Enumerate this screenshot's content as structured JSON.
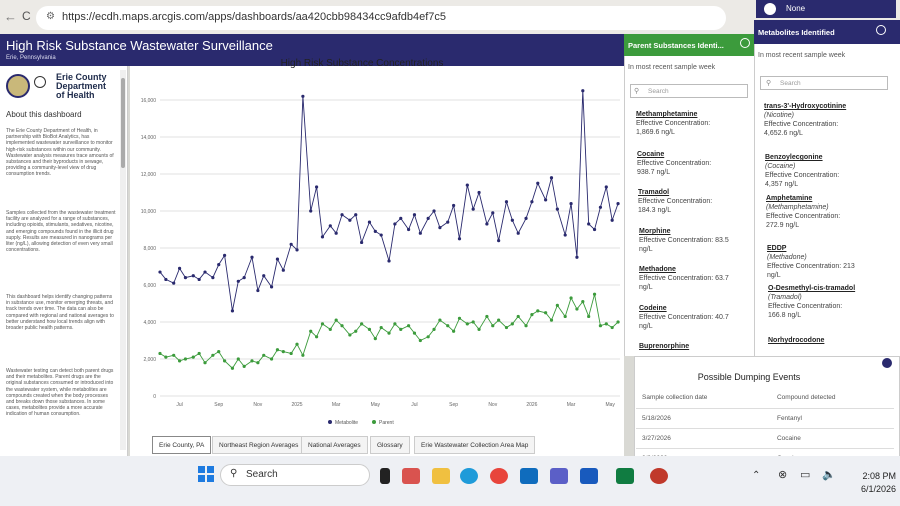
{
  "browser": {
    "back": "←",
    "reload": "C",
    "url": "https://ecdh.maps.arcgis.com/apps/dashboards/aa420cbb98434cc9afdb4ef7c5"
  },
  "header": {
    "title": "High Risk Substance Wastewater Surveillance",
    "subtitle": "Erie, Pennsylvania"
  },
  "notice": {
    "label": "None"
  },
  "left": {
    "logo_text": [
      "Erie County",
      "Department",
      "of Health"
    ],
    "about_heading": "About this dashboard",
    "paragraphs": [
      "The Erie County Department of Health, in partnership with BioBot Analytics, has implemented wastewater surveillance to monitor high-risk substances within our community. Wastewater analysis measures trace amounts of substances and their byproducts in sewage, providing a community-level view of drug consumption trends.",
      "Samples collected from the wastewater treatment facility are analyzed for a range of substances, including opioids, stimulants, sedatives, nicotine, and emerging compounds found in the illicit drug supply. Results are measured in nanograms per liter (ng/L), allowing detection of even very small concentrations.",
      "This dashboard helps identify changing patterns in substance use, monitor emerging threats, and track trends over time. The data can also be compared with regional and national averages to better understand how local trends align with broader public health patterns.",
      "Wastewater testing can detect both parent drugs and their metabolites. Parent drugs are the original substances consumed or introduced into the wastewater system, while metabolites are compounds created when the body processes and breaks down those substances. In some cases, metabolites provide a more accurate indication of human consumption."
    ]
  },
  "chart_data": {
    "type": "line",
    "title": "High Risk Substance Concentrations",
    "ylim": [
      0,
      16000
    ],
    "yticks": [
      "0",
      "2,000",
      "4,000",
      "6,000",
      "8,000",
      "10,000",
      "12,000",
      "14,000",
      "16,000"
    ],
    "xticks": [
      "Jul",
      "Sep",
      "Nov",
      "2025",
      "Mar",
      "May",
      "Jul",
      "Sep",
      "Nov",
      "2026",
      "Mar",
      "May"
    ],
    "xrange": [
      0,
      23.5
    ],
    "legend": "bottom",
    "series": [
      {
        "name": "Metabolite",
        "color": "#2a2a6e",
        "x": [
          0,
          0.3,
          0.7,
          1,
          1.3,
          1.7,
          2,
          2.3,
          2.7,
          3,
          3.3,
          3.7,
          4,
          4.3,
          4.7,
          5,
          5.3,
          5.7,
          6,
          6.3,
          6.7,
          7,
          7.3,
          7.7,
          8,
          8.3,
          8.7,
          9,
          9.3,
          9.7,
          10,
          10.3,
          10.7,
          11,
          11.3,
          11.7,
          12,
          12.3,
          12.7,
          13,
          13.3,
          13.7,
          14,
          14.3,
          14.7,
          15,
          15.3,
          15.7,
          16,
          16.3,
          16.7,
          17,
          17.3,
          17.7,
          18,
          18.3,
          18.7,
          19,
          19.3,
          19.7,
          20,
          20.3,
          20.7,
          21,
          21.3,
          21.6,
          21.9,
          22.2,
          22.5,
          22.8,
          23.1,
          23.4
        ],
        "values": [
          6700,
          6300,
          6100,
          6900,
          6400,
          6500,
          6300,
          6700,
          6400,
          7100,
          7600,
          4600,
          6200,
          6400,
          7500,
          5700,
          6500,
          5900,
          7400,
          6800,
          8200,
          7900,
          16200,
          10000,
          11300,
          8600,
          9200,
          8800,
          9800,
          9500,
          9800,
          8300,
          9400,
          8900,
          8700,
          7300,
          9300,
          9600,
          9000,
          9800,
          8800,
          9600,
          10000,
          9100,
          9400,
          10300,
          8500,
          11400,
          10100,
          11000,
          9300,
          9900,
          8400,
          10500,
          9500,
          8800,
          9600,
          10500,
          11500,
          10600,
          11800,
          10100,
          8700,
          10400,
          7500,
          16500,
          9300,
          9000,
          10200,
          11300,
          9500,
          10400
        ]
      },
      {
        "name": "Parent",
        "color": "#3c9b3c",
        "x": [
          0,
          0.3,
          0.7,
          1,
          1.3,
          1.7,
          2,
          2.3,
          2.7,
          3,
          3.3,
          3.7,
          4,
          4.3,
          4.7,
          5,
          5.3,
          5.7,
          6,
          6.3,
          6.7,
          7,
          7.3,
          7.7,
          8,
          8.3,
          8.7,
          9,
          9.3,
          9.7,
          10,
          10.3,
          10.7,
          11,
          11.3,
          11.7,
          12,
          12.3,
          12.7,
          13,
          13.3,
          13.7,
          14,
          14.3,
          14.7,
          15,
          15.3,
          15.7,
          16,
          16.3,
          16.7,
          17,
          17.3,
          17.7,
          18,
          18.3,
          18.7,
          19,
          19.3,
          19.7,
          20,
          20.3,
          20.7,
          21,
          21.3,
          21.6,
          21.9,
          22.2,
          22.5,
          22.8,
          23.1,
          23.4
        ],
        "values": [
          2300,
          2100,
          2200,
          1900,
          2000,
          2100,
          2300,
          1800,
          2200,
          2400,
          1900,
          1500,
          2000,
          1600,
          1900,
          1800,
          2200,
          2000,
          2500,
          2400,
          2300,
          2800,
          2200,
          3500,
          3200,
          3900,
          3600,
          4100,
          3800,
          3300,
          3500,
          3900,
          3600,
          3100,
          3700,
          3400,
          3900,
          3600,
          3800,
          3400,
          3000,
          3200,
          3600,
          4100,
          3800,
          3500,
          4200,
          3900,
          4000,
          3600,
          4300,
          3800,
          4100,
          3700,
          3900,
          4300,
          3800,
          4400,
          4600,
          4500,
          4100,
          4900,
          4300,
          5300,
          4700,
          5100,
          4300,
          5500,
          3800,
          3900,
          3700,
          4000
        ]
      }
    ]
  },
  "tabs": [
    "Erie County, PA",
    "Northeast Region Averages",
    "National Averages",
    "Glossary",
    "Erie Wastewater Collection Area Map"
  ],
  "parent": {
    "header": "Parent Substances Identi...",
    "subheader": "In most recent sample week",
    "search_placeholder": "Search",
    "items": [
      {
        "name": "Methamphetamine",
        "line1": "Effective Concentration:",
        "line2": "1,869.6 ng/L"
      },
      {
        "name": "Cocaine",
        "line1": "Effective Concentration:",
        "line2": "938.7 ng/L"
      },
      {
        "name": "Tramadol",
        "line1": "Effective Concentration:",
        "line2": "184.3 ng/L"
      },
      {
        "name": "Morphine",
        "line1": "Effective Concentration: 83.5",
        "line2": "ng/L"
      },
      {
        "name": "Methadone",
        "line1": "Effective Concentration: 63.7",
        "line2": "ng/L"
      },
      {
        "name": "Codeine",
        "line1": "Effective Concentration: 40.7",
        "line2": "ng/L"
      },
      {
        "name": "Buprenorphine",
        "line1": "",
        "line2": ""
      }
    ]
  },
  "meta": {
    "header": "Metabolites Identified",
    "subheader": "In most recent sample week",
    "search_placeholder": "Search",
    "items": [
      {
        "name": "trans-3'-Hydroxycotinine",
        "parent": "(Nicotine)",
        "line1": "Effective Concentration:",
        "line2": "4,652.6 ng/L"
      },
      {
        "name": "Benzoylecgonine",
        "parent": "(Cocaine)",
        "line1": "Effective Concentration:",
        "line2": "4,357 ng/L"
      },
      {
        "name": "Amphetamine",
        "parent": "(Methamphetamine)",
        "line1": "Effective Concentration:",
        "line2": "272.9 ng/L"
      },
      {
        "name": "EDDP",
        "parent": "(Methadone)",
        "line1": "Effective Concentration: 213",
        "line2": "ng/L"
      },
      {
        "name": "O-Desmethyl-cis-tramadol",
        "parent": "(Tramadol)",
        "line1": "Effective Concentration:",
        "line2": "166.8 ng/L"
      },
      {
        "name": "Norhydrocodone",
        "parent": "",
        "line1": "",
        "line2": ""
      }
    ]
  },
  "dumping": {
    "title": "Possible Dumping Events",
    "col1": "Sample collection date",
    "col2": "Compound detected",
    "rows": [
      {
        "date": "5/18/2026",
        "compound": "Fentanyl"
      },
      {
        "date": "3/27/2026",
        "compound": "Cocaine"
      },
      {
        "date": "3/9/2026",
        "compound": "Cocaine"
      }
    ]
  },
  "taskbar": {
    "search": "Search",
    "time": "2:08 PM",
    "date": "6/1/2026"
  }
}
